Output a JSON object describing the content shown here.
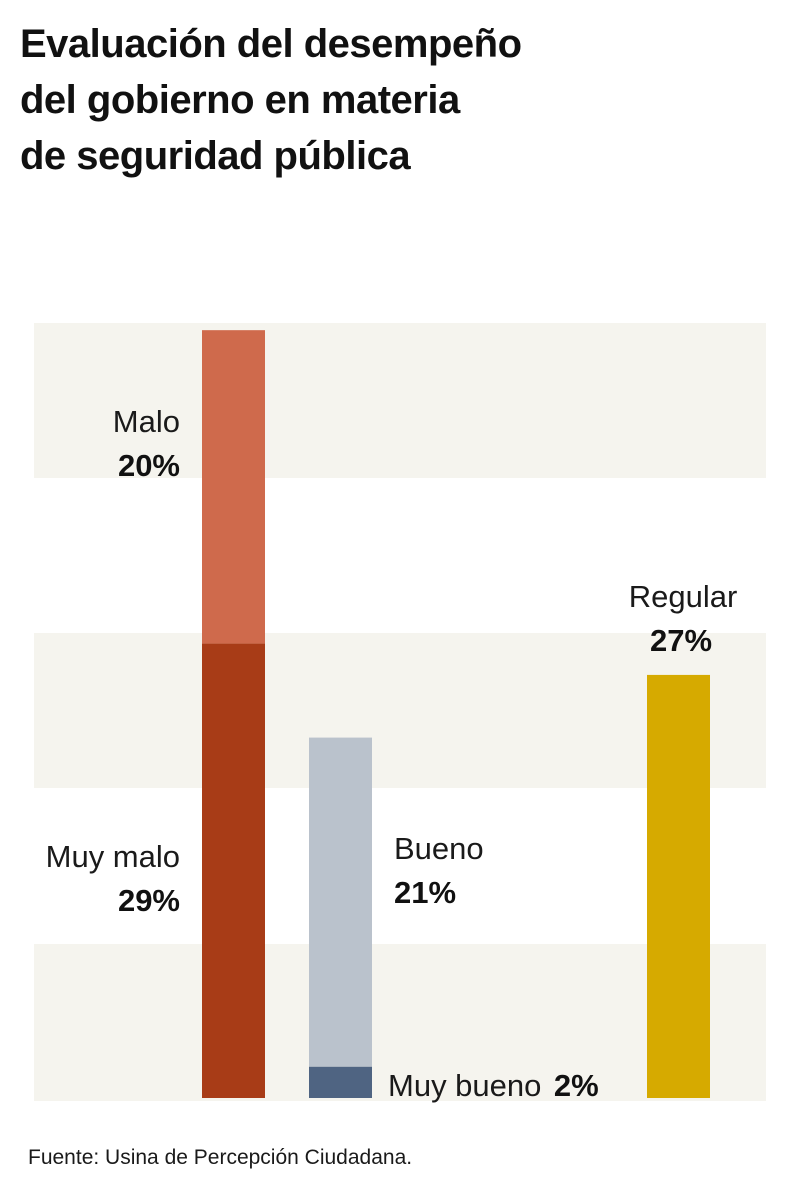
{
  "title_lines": [
    "Evaluación del desempeño",
    "del gobierno en materia",
    "de seguridad pública"
  ],
  "source": "Fuente: Usina de Percepción Ciudadana.",
  "chart_data": {
    "type": "bar",
    "stacked": true,
    "unit": "%",
    "ylim": [
      0,
      50
    ],
    "grid_bands": true,
    "bars": [
      {
        "segments": [
          {
            "key": "muy_malo",
            "label": "Muy malo",
            "value": 29,
            "value_text": "29%",
            "color": "#a83c17"
          },
          {
            "key": "malo",
            "label": "Malo",
            "value": 20,
            "value_text": "20%",
            "color": "#cf6a4c"
          }
        ]
      },
      {
        "segments": [
          {
            "key": "muy_bueno",
            "label": "Muy bueno",
            "value": 2,
            "value_text": "2%",
            "color": "#4f6482"
          },
          {
            "key": "bueno",
            "label": "Bueno",
            "value": 21,
            "value_text": "21%",
            "color": "#bac2cc"
          }
        ]
      },
      {
        "segments": [
          {
            "key": "regular",
            "label": "Regular",
            "value": 27,
            "value_text": "27%",
            "color": "#d6aa00"
          }
        ]
      }
    ],
    "band_color": "#f5f4ee"
  }
}
